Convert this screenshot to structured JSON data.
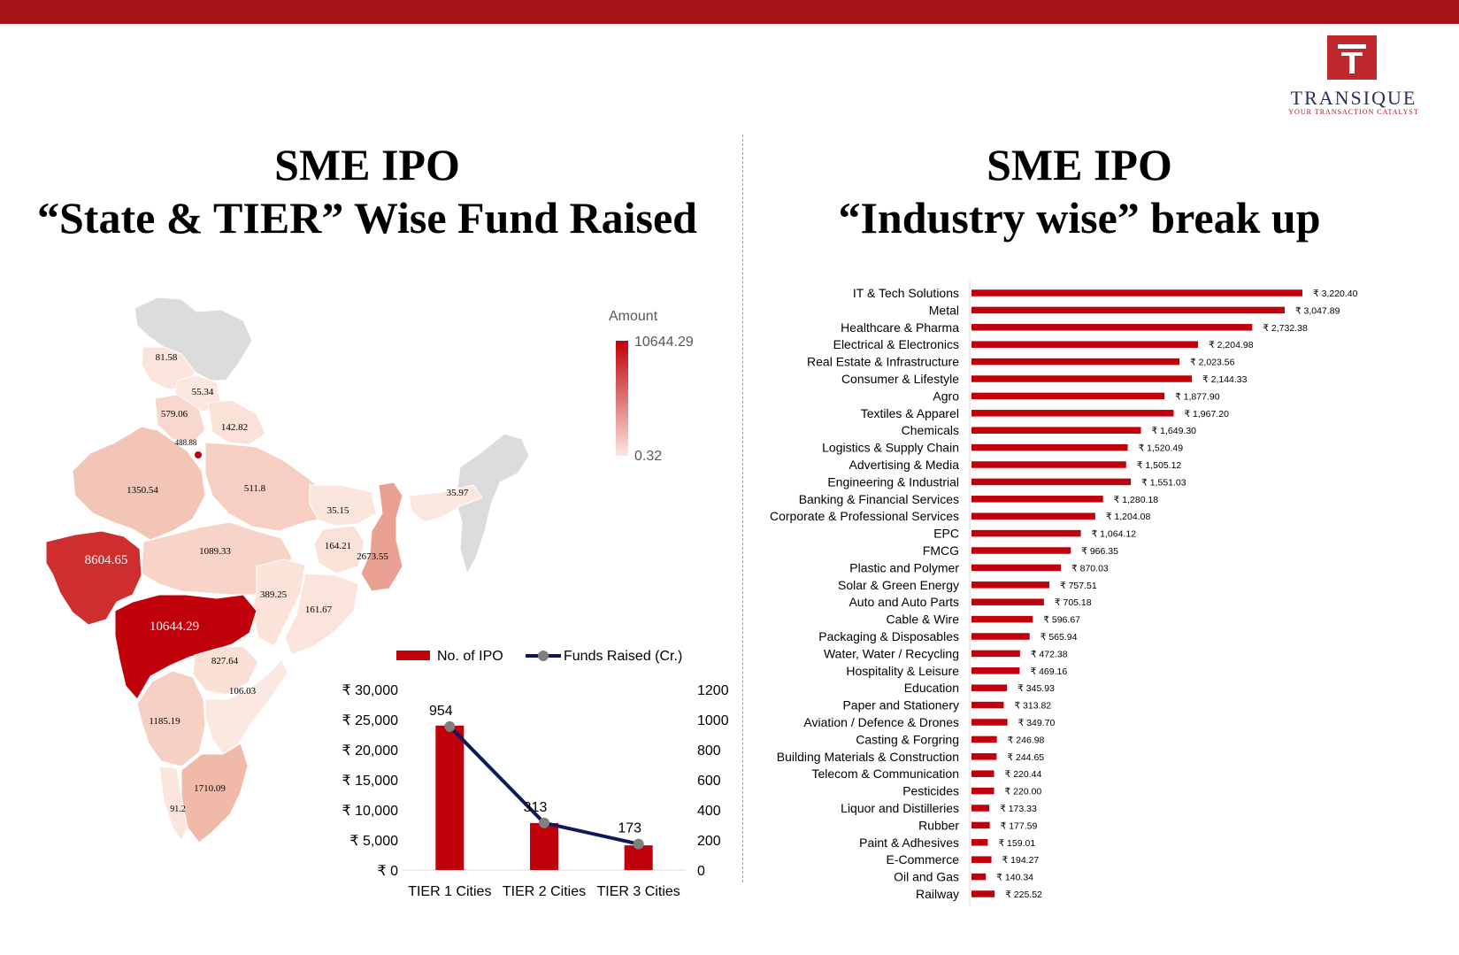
{
  "brand": {
    "name": "TRANSIQUE",
    "tagline": "YOUR TRANSACTION CATALYST"
  },
  "left_title": [
    "SME IPO",
    "“State & TIER” Wise Fund Raised"
  ],
  "right_title": [
    "SME IPO",
    "“Industry wise” break up"
  ],
  "colors": {
    "accent": "#a51416",
    "bar": "#c0000b",
    "line": "#0e1a5c",
    "map_grey": "#dcdcdc"
  },
  "map": {
    "legend_title": "Amount",
    "legend_max": "10644.29",
    "legend_min": "0.32",
    "labels": [
      {
        "region": "Himachal Pradesh",
        "value": "81.58"
      },
      {
        "region": "Punjab",
        "value": "55.34"
      },
      {
        "region": "Haryana",
        "value": "579.06"
      },
      {
        "region": "Uttarakhand",
        "value": "142.82"
      },
      {
        "region": "Delhi",
        "value": "488.88"
      },
      {
        "region": "Rajasthan",
        "value": "1350.54"
      },
      {
        "region": "Uttar Pradesh",
        "value": "511.8"
      },
      {
        "region": "Bihar",
        "value": "35.15"
      },
      {
        "region": "Assam",
        "value": "35.97"
      },
      {
        "region": "Jharkhand",
        "value": "164.21"
      },
      {
        "region": "West Bengal",
        "value": "2673.55"
      },
      {
        "region": "Gujarat",
        "value": "8604.65"
      },
      {
        "region": "Madhya Pradesh",
        "value": "1089.33"
      },
      {
        "region": "Chhattisgarh",
        "value": "389.25"
      },
      {
        "region": "Odisha",
        "value": "161.67"
      },
      {
        "region": "Maharashtra",
        "value": "10644.29"
      },
      {
        "region": "Telangana",
        "value": "827.64"
      },
      {
        "region": "Andhra Pradesh",
        "value": "106.03"
      },
      {
        "region": "Karnataka",
        "value": "1185.19"
      },
      {
        "region": "Tamil Nadu",
        "value": "1710.09"
      },
      {
        "region": "Kerala",
        "value": "91.2"
      }
    ]
  },
  "chart_data": [
    {
      "type": "bar",
      "categories": [
        "TIER 1 Cities",
        "TIER 2 Cities",
        "TIER 3 Cities"
      ],
      "series": [
        {
          "name": "No. of IPO",
          "type": "bar",
          "axis": "left",
          "values": [
            24000,
            7800,
            4100
          ]
        },
        {
          "name": "Funds Raised (Cr.)",
          "type": "line",
          "axis": "right",
          "values": [
            954,
            313,
            173
          ]
        }
      ],
      "data_labels": [
        "954",
        "313",
        "173"
      ],
      "y_left": {
        "ticks": [
          "₹ 30,000",
          "₹ 25,000",
          "₹ 20,000",
          "₹ 15,000",
          "₹ 10,000",
          "₹ 5,000",
          "₹ 0"
        ],
        "range": [
          0,
          30000
        ]
      },
      "y_right": {
        "ticks": [
          "1200",
          "1000",
          "800",
          "600",
          "400",
          "200",
          "0"
        ],
        "range": [
          0,
          1200
        ]
      },
      "legend": "top"
    },
    {
      "type": "bar",
      "orientation": "horizontal",
      "categories": [
        "IT & Tech Solutions",
        "Metal",
        "Healthcare & Pharma",
        "Electrical & Electronics",
        "Real Estate & Infrastructure",
        "Consumer & Lifestyle",
        "Agro",
        "Textiles & Apparel",
        "Chemicals",
        "Logistics & Supply Chain",
        "Advertising & Media",
        "Engineering & Industrial",
        "Banking & Financial Services",
        "Corporate & Professional Services",
        "EPC",
        "FMCG",
        "Plastic and Polymer",
        "Solar & Green Energy",
        "Auto and Auto Parts",
        "Cable & Wire",
        "Packaging & Disposables",
        "Water, Water / Recycling",
        "Hospitality & Leisure",
        "Education",
        "Paper and Stationery",
        "Aviation / Defence & Drones",
        "Casting & Forgring",
        "Building Materials & Construction",
        "Telecom & Communication",
        "Pesticides",
        "Liquor and Distilleries",
        "Rubber",
        "Paint & Adhesives",
        "E-Commerce",
        "Oil and Gas",
        "Railway"
      ],
      "values": [
        3220.4,
        3047.89,
        2732.38,
        2204.98,
        2023.56,
        2144.33,
        1877.9,
        1967.2,
        1649.3,
        1520.49,
        1505.12,
        1551.03,
        1280.18,
        1204.08,
        1064.12,
        966.35,
        870.03,
        757.51,
        705.18,
        596.67,
        565.94,
        472.38,
        469.16,
        345.93,
        313.82,
        349.7,
        246.98,
        244.65,
        220.44,
        220.0,
        173.33,
        177.59,
        159.01,
        194.27,
        140.34,
        225.52
      ],
      "labels": [
        "₹ 3,220.40",
        "₹ 3,047.89",
        "₹ 2,732.38",
        "₹ 2,204.98",
        "₹ 2,023.56",
        "₹ 2,144.33",
        "₹ 1,877.90",
        "₹ 1,967.20",
        "₹ 1,649.30",
        "₹ 1,520.49",
        "₹ 1,505.12",
        "₹ 1,551.03",
        "₹ 1,280.18",
        "₹ 1,204.08",
        "₹ 1,064.12",
        "₹ 966.35",
        "₹ 870.03",
        "₹ 757.51",
        "₹ 705.18",
        "₹ 596.67",
        "₹ 565.94",
        "₹ 472.38",
        "₹ 469.16",
        "₹ 345.93",
        "₹ 313.82",
        "₹ 349.70",
        "₹ 246.98",
        "₹ 244.65",
        "₹ 220.44",
        "₹ 220.00",
        "₹ 173.33",
        "₹ 177.59",
        "₹ 159.01",
        "₹ 194.27",
        "₹ 140.34",
        "₹ 225.52"
      ]
    }
  ]
}
